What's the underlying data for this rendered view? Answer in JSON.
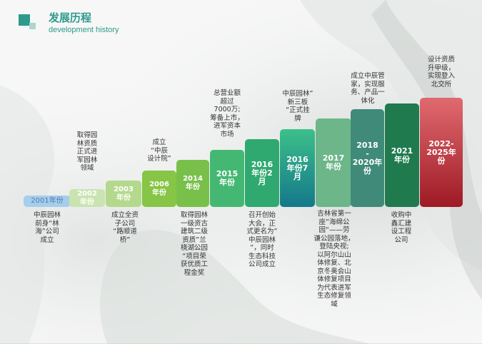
{
  "header": {
    "title": "发展历程",
    "subtitle": "development history"
  },
  "timeline": [
    {
      "label": "2001年份",
      "color": "#a7cdec",
      "text_color": "#4a7fb0",
      "below": "中辰园林\n前身“林\n海”公司\n成立"
    },
    {
      "label": "2002\n年份",
      "color": "#c9e4b0",
      "text_color": "#ffffff",
      "above": "取得园\n林资质\n正式进\n军园林\n领域"
    },
    {
      "label": "2003\n年份",
      "color": "#b4d98c",
      "text_color": "#ffffff",
      "below": "成立全资\n子公司\n“路顺道\n桥”"
    },
    {
      "label": "2006\n年份",
      "color": "#86c545",
      "text_color": "#ffffff",
      "above": "成立\n“中辰\n设计院”"
    },
    {
      "label": "2014\n年份",
      "color": "#79c04a",
      "text_color": "#ffffff",
      "below": "取得园林\n一级资古\n建筑二级\n资质”兰\n桡湖公园\n“项目荣\n获优质工\n程金奖"
    },
    {
      "label": "2015\n年份",
      "color": "#44b873",
      "text_color": "#ffffff",
      "above": "总营业额\n超过\n7000万;\n筹备上市，\n进军资本\n市场"
    },
    {
      "label": "2016\n年份2\n月",
      "color": "#2fa970",
      "text_color": "#ffffff",
      "below": "召开创始\n大会，正\n式更名为”\n中辰园林\n”，同时\n生态科技\n公司成立"
    },
    {
      "label": "2016\n年份7\n月",
      "color": "#1d9e84",
      "text_color": "#ffffff",
      "above": "中辰园林”\n新三板\n“正式挂\n牌"
    },
    {
      "label": "2017\n年份",
      "color": "#6cb68a",
      "text_color": "#ffffff",
      "below": "吉林省第一\n座”海绵公\n园“——劳\n谦公园落地，\n登陆央视;\n以阿尔山山\n体修复、北\n京冬奥会山\n体修复项目\n为代表进军\n生态修复领\n域"
    },
    {
      "label": "2018\n-\n2020年\n份",
      "color": "#3f8a78",
      "text_color": "#ffffff",
      "above": "成立中辰管\n家，实现服\n务、产品一\n体化"
    },
    {
      "label": "2021\n年份",
      "color": "#1f7a4e",
      "text_color": "#ffffff",
      "below": "收购中\n鑫汇建\n设工程\n公司"
    },
    {
      "label": "2022-\n2025年\n份",
      "color": "#c0303a",
      "text_color": "#ffffff",
      "above": "设计资质\n升甲级，\n实现登入\n北交所"
    }
  ]
}
